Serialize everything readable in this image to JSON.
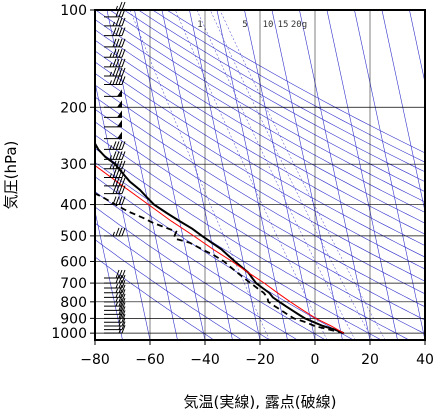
{
  "chart_data": {
    "type": "line",
    "title": "",
    "xlabel": "気温(実線), 露点(破線)",
    "ylabel": "気圧(hPa)",
    "x_unit": "°C",
    "y_scale": "log",
    "y_inverted": true,
    "xlim": [
      -80,
      40
    ],
    "ylim": [
      1050,
      100
    ],
    "x_ticks": [
      -80,
      -60,
      -40,
      -20,
      0,
      20,
      40
    ],
    "x_tick_labels": [
      "−80",
      "−60",
      "−40",
      "−20",
      "0",
      "20",
      "40"
    ],
    "y_ticks": [
      100,
      200,
      300,
      400,
      500,
      600,
      700,
      800,
      900,
      1000
    ],
    "y_tick_labels": [
      "100",
      "200",
      "300",
      "400",
      "500",
      "600",
      "700",
      "800",
      "900",
      "1000"
    ],
    "skew_t": true,
    "mixing_ratio_labels": [
      "1",
      "5",
      "10",
      "15",
      "20g"
    ],
    "colors": {
      "temperature": "#000000",
      "dewpoint": "#000000",
      "isotherm": "#3333cc",
      "adiabat": "#3333cc",
      "parcel": "#ff0000",
      "grid": "#000000"
    },
    "series": [
      {
        "style": "solid",
        "points": [
          [
            1000,
            11
          ],
          [
            975,
            8
          ],
          [
            950,
            4
          ],
          [
            925,
            1
          ],
          [
            900,
            -2
          ],
          [
            875,
            -4
          ],
          [
            850,
            -6
          ],
          [
            825,
            -8
          ],
          [
            800,
            -10
          ],
          [
            775,
            -12
          ],
          [
            750,
            -13
          ],
          [
            725,
            -15
          ],
          [
            700,
            -17
          ],
          [
            675,
            -18
          ],
          [
            650,
            -19
          ],
          [
            625,
            -21
          ],
          [
            600,
            -23
          ],
          [
            575,
            -25
          ],
          [
            550,
            -27
          ],
          [
            525,
            -30
          ],
          [
            500,
            -33
          ],
          [
            475,
            -36
          ],
          [
            450,
            -40
          ],
          [
            425,
            -44
          ],
          [
            400,
            -48
          ],
          [
            380,
            -50
          ],
          [
            360,
            -52
          ],
          [
            340,
            -55
          ],
          [
            320,
            -57
          ],
          [
            300,
            -59
          ],
          [
            285,
            -62
          ],
          [
            270,
            -64
          ],
          [
            255,
            -65
          ],
          [
            240,
            -67
          ],
          [
            230,
            -68
          ],
          [
            220,
            -69
          ],
          [
            210,
            -71
          ],
          [
            200,
            -74
          ],
          [
            190,
            -75
          ],
          [
            180,
            -76
          ],
          [
            175,
            -78
          ],
          [
            165,
            -79
          ],
          [
            155,
            -80
          ],
          [
            145,
            -81
          ],
          [
            135,
            -82
          ],
          [
            125,
            -84
          ],
          [
            120,
            -85
          ],
          [
            115,
            -87
          ],
          [
            110,
            -88
          ],
          [
            105,
            -89
          ],
          [
            100,
            -90
          ]
        ]
      },
      {
        "style": "dashed",
        "points": [
          [
            1000,
            11
          ],
          [
            975,
            6
          ],
          [
            950,
            1
          ],
          [
            925,
            -2
          ],
          [
            900,
            -6
          ],
          [
            875,
            -8
          ],
          [
            850,
            -10
          ],
          [
            825,
            -12
          ],
          [
            800,
            -14
          ],
          [
            775,
            -14
          ],
          [
            750,
            -15
          ],
          [
            725,
            -17
          ],
          [
            700,
            -19
          ],
          [
            675,
            -21
          ],
          [
            650,
            -23
          ],
          [
            625,
            -25
          ],
          [
            600,
            -27
          ],
          [
            575,
            -30
          ],
          [
            550,
            -34
          ],
          [
            525,
            -38
          ],
          [
            510,
            -43
          ],
          [
            500,
            -43
          ],
          [
            485,
            -42
          ],
          [
            470,
            -46
          ],
          [
            455,
            -50
          ],
          [
            440,
            -53
          ],
          [
            420,
            -58
          ],
          [
            400,
            -62
          ],
          [
            380,
            -66
          ],
          [
            360,
            -71
          ],
          [
            355,
            -84
          ],
          [
            340,
            -84
          ]
        ]
      },
      {
        "style": "parcel",
        "points": [
          [
            1000,
            11
          ],
          [
            950,
            7
          ],
          [
            900,
            2
          ],
          [
            850,
            -2
          ],
          [
            800,
            -6
          ],
          [
            750,
            -10
          ],
          [
            700,
            -14
          ],
          [
            650,
            -19
          ],
          [
            600,
            -24
          ],
          [
            550,
            -30
          ],
          [
            500,
            -36
          ],
          [
            450,
            -43
          ],
          [
            400,
            -50
          ],
          [
            350,
            -58
          ],
          [
            300,
            -67
          ],
          [
            250,
            -78
          ],
          [
            225,
            -84
          ],
          [
            200,
            -90
          ]
        ]
      }
    ],
    "wind_barbs": [
      {
        "p": 1000,
        "speed": 15
      },
      {
        "p": 975,
        "speed": 15
      },
      {
        "p": 950,
        "speed": 15
      },
      {
        "p": 925,
        "speed": 20
      },
      {
        "p": 900,
        "speed": 20
      },
      {
        "p": 875,
        "speed": 20
      },
      {
        "p": 850,
        "speed": 20
      },
      {
        "p": 825,
        "speed": 25
      },
      {
        "p": 800,
        "speed": 25
      },
      {
        "p": 775,
        "speed": 25
      },
      {
        "p": 750,
        "speed": 25
      },
      {
        "p": 725,
        "speed": 25
      },
      {
        "p": 700,
        "speed": 30
      },
      {
        "p": 675,
        "speed": 30
      },
      {
        "p": 500,
        "speed": 35
      },
      {
        "p": 400,
        "speed": 40
      },
      {
        "p": 370,
        "speed": 40
      },
      {
        "p": 350,
        "speed": 40
      },
      {
        "p": 330,
        "speed": 45
      },
      {
        "p": 310,
        "speed": 45
      },
      {
        "p": 290,
        "speed": 45
      },
      {
        "p": 270,
        "speed": 45
      },
      {
        "p": 250,
        "speed": 50
      },
      {
        "p": 230,
        "speed": 50
      },
      {
        "p": 215,
        "speed": 50
      },
      {
        "p": 200,
        "speed": 50
      },
      {
        "p": 185,
        "speed": 50
      },
      {
        "p": 170,
        "speed": 45
      },
      {
        "p": 160,
        "speed": 45
      },
      {
        "p": 150,
        "speed": 45
      },
      {
        "p": 140,
        "speed": 45
      },
      {
        "p": 130,
        "speed": 40
      },
      {
        "p": 120,
        "speed": 40
      },
      {
        "p": 112,
        "speed": 35
      },
      {
        "p": 105,
        "speed": 30
      },
      {
        "p": 100,
        "speed": 25
      }
    ]
  }
}
